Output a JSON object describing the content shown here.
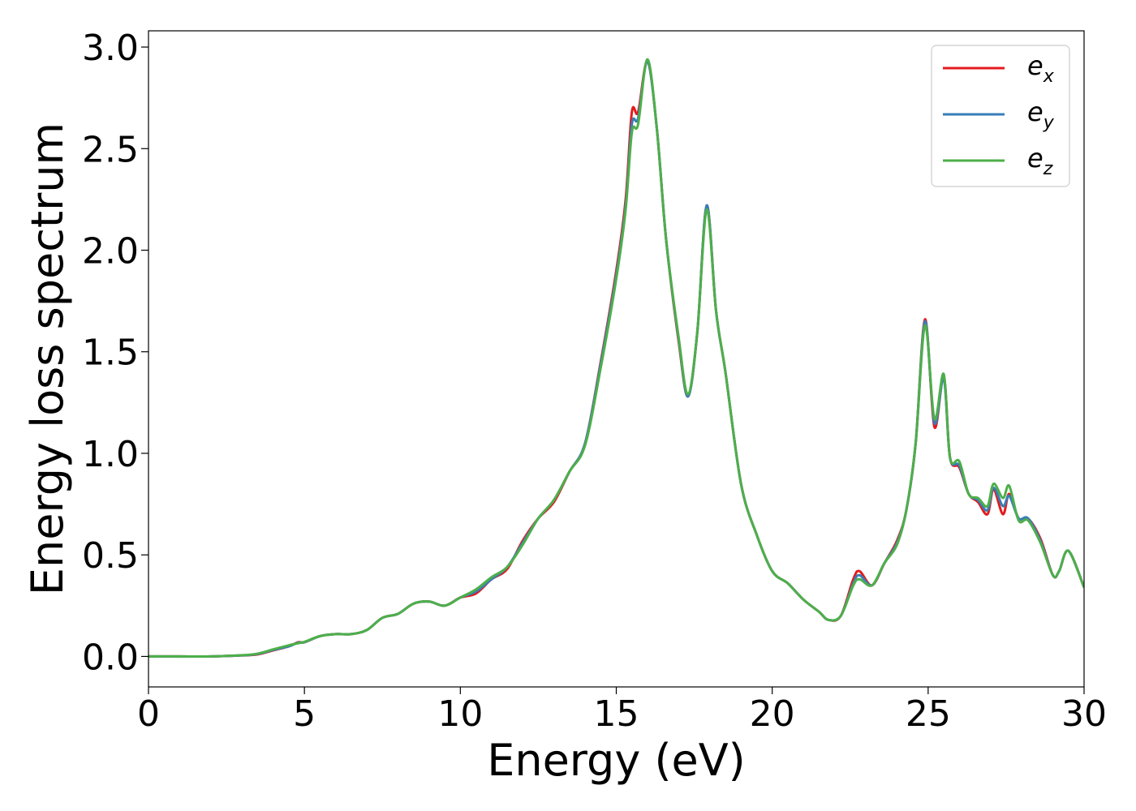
{
  "chart_data": {
    "type": "line",
    "title": "",
    "xlabel": "Energy (eV)",
    "ylabel": "Energy loss spectrum",
    "xlim": [
      0,
      30
    ],
    "ylim": [
      -0.15,
      3.08
    ],
    "xticks": [
      0,
      5,
      10,
      15,
      20,
      25,
      30
    ],
    "xtick_labels": [
      "0",
      "5",
      "10",
      "15",
      "20",
      "25",
      "30"
    ],
    "yticks": [
      0.0,
      0.5,
      1.0,
      1.5,
      2.0,
      2.5,
      3.0
    ],
    "ytick_labels": [
      "0.0",
      "0.5",
      "1.0",
      "1.5",
      "2.0",
      "2.5",
      "3.0"
    ],
    "grid": false,
    "legend": {
      "position": "top-right"
    },
    "x": [
      0,
      1,
      2,
      3,
      3.5,
      4,
      4.5,
      4.8,
      5,
      5.5,
      6,
      6.5,
      7,
      7.5,
      8,
      8.5,
      9,
      9.5,
      10,
      10.5,
      11,
      11.5,
      12,
      12.5,
      13,
      13.5,
      14,
      14.5,
      15,
      15.3,
      15.5,
      15.7,
      16,
      16.3,
      16.6,
      17,
      17.3,
      17.6,
      17.9,
      18.2,
      18.5,
      19,
      19.5,
      20,
      20.5,
      21,
      21.5,
      21.8,
      22.2,
      22.6,
      22.8,
      23.2,
      23.6,
      24,
      24.3,
      24.6,
      24.9,
      25.2,
      25.5,
      25.7,
      26,
      26.3,
      26.6,
      26.9,
      27.1,
      27.4,
      27.6,
      27.9,
      28.2,
      28.6,
      29,
      29.2,
      29.5,
      30
    ],
    "series": [
      {
        "name": "e_x",
        "label_base": "e",
        "label_sub": "x",
        "color": "#e41a1c",
        "values": [
          0,
          0,
          0,
          0.005,
          0.01,
          0.03,
          0.05,
          0.07,
          0.07,
          0.1,
          0.11,
          0.11,
          0.13,
          0.19,
          0.21,
          0.26,
          0.27,
          0.25,
          0.29,
          0.31,
          0.38,
          0.43,
          0.57,
          0.68,
          0.76,
          0.91,
          1.05,
          1.45,
          1.9,
          2.25,
          2.68,
          2.68,
          2.93,
          2.6,
          2.05,
          1.55,
          1.28,
          1.6,
          2.22,
          1.7,
          1.4,
          0.85,
          0.6,
          0.42,
          0.36,
          0.28,
          0.22,
          0.18,
          0.2,
          0.38,
          0.42,
          0.35,
          0.46,
          0.57,
          0.72,
          1.05,
          1.66,
          1.13,
          1.38,
          0.98,
          0.93,
          0.8,
          0.76,
          0.7,
          0.82,
          0.7,
          0.8,
          0.68,
          0.68,
          0.58,
          0.4,
          0.42,
          0.52,
          0.34
        ]
      },
      {
        "name": "e_y",
        "label_base": "e",
        "label_sub": "y",
        "color": "#377eb8",
        "values": [
          0,
          0,
          0,
          0.005,
          0.012,
          0.032,
          0.05,
          0.068,
          0.07,
          0.1,
          0.11,
          0.11,
          0.13,
          0.19,
          0.21,
          0.26,
          0.27,
          0.25,
          0.29,
          0.32,
          0.38,
          0.44,
          0.56,
          0.68,
          0.77,
          0.91,
          1.05,
          1.44,
          1.88,
          2.22,
          2.62,
          2.65,
          2.93,
          2.6,
          2.05,
          1.56,
          1.28,
          1.6,
          2.22,
          1.7,
          1.4,
          0.85,
          0.6,
          0.42,
          0.36,
          0.28,
          0.22,
          0.18,
          0.2,
          0.36,
          0.4,
          0.35,
          0.46,
          0.56,
          0.72,
          1.05,
          1.65,
          1.15,
          1.37,
          0.98,
          0.94,
          0.8,
          0.77,
          0.72,
          0.83,
          0.74,
          0.79,
          0.68,
          0.68,
          0.57,
          0.4,
          0.42,
          0.52,
          0.34
        ]
      },
      {
        "name": "e_z",
        "label_base": "e",
        "label_sub": "z",
        "color": "#4daf4a",
        "values": [
          0,
          0,
          0,
          0.006,
          0.014,
          0.035,
          0.055,
          0.065,
          0.072,
          0.1,
          0.11,
          0.11,
          0.13,
          0.19,
          0.21,
          0.26,
          0.27,
          0.25,
          0.29,
          0.33,
          0.39,
          0.44,
          0.55,
          0.68,
          0.77,
          0.91,
          1.04,
          1.42,
          1.86,
          2.2,
          2.58,
          2.62,
          2.94,
          2.6,
          2.05,
          1.57,
          1.29,
          1.6,
          2.2,
          1.7,
          1.4,
          0.85,
          0.6,
          0.42,
          0.36,
          0.28,
          0.22,
          0.18,
          0.2,
          0.35,
          0.38,
          0.35,
          0.46,
          0.55,
          0.72,
          1.05,
          1.63,
          1.17,
          1.39,
          0.98,
          0.96,
          0.8,
          0.78,
          0.74,
          0.85,
          0.78,
          0.84,
          0.67,
          0.67,
          0.56,
          0.4,
          0.42,
          0.52,
          0.34
        ]
      }
    ]
  }
}
